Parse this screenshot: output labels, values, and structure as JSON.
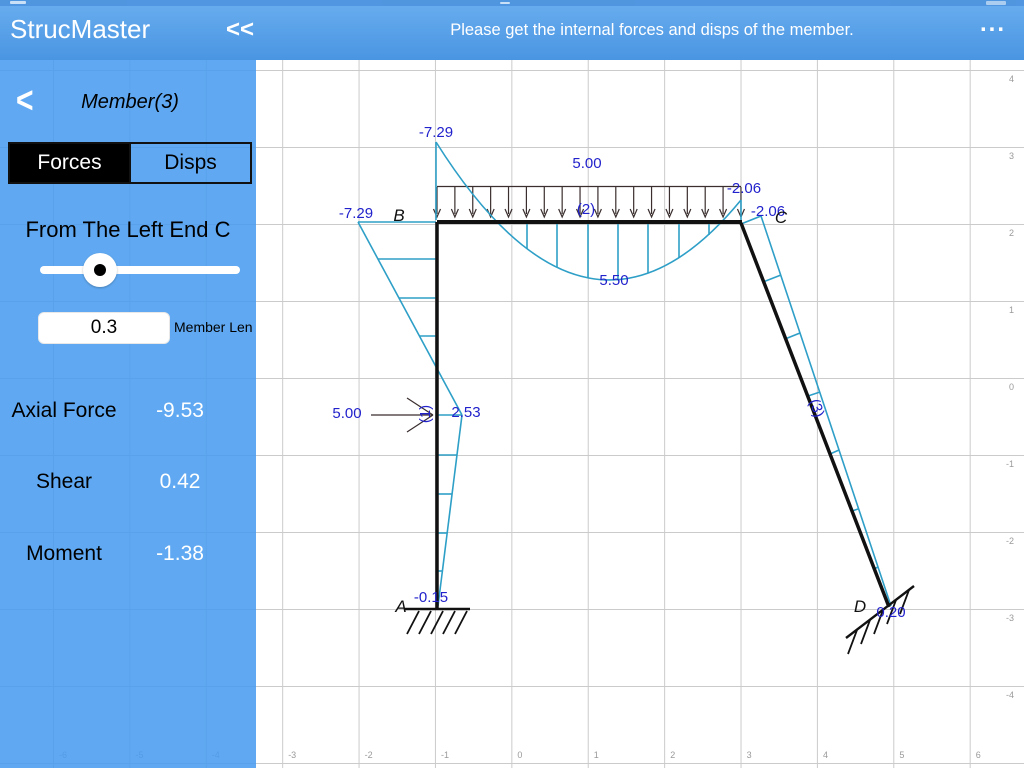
{
  "header": {
    "app_title": "StrucMaster",
    "collapse_label": "<<",
    "message": "Please get the internal forces and disps of the member.",
    "menu_label": "..."
  },
  "sidebar": {
    "back_label": "<",
    "title": "Member(3)",
    "tabs": [
      {
        "label": "Forces",
        "active": true
      },
      {
        "label": "Disps",
        "active": false
      }
    ],
    "slider_label": "From The Left End C",
    "position_value": "0.3",
    "position_field_label": "Member Len",
    "results": [
      {
        "label": "Axial Force",
        "value": "-9.53"
      },
      {
        "label": "Shear",
        "value": "0.42"
      },
      {
        "label": "Moment",
        "value": "-1.38"
      }
    ]
  },
  "diagram": {
    "node_a": "A",
    "node_b": "B",
    "node_c": "C",
    "node_d": "D",
    "member1_tag": "(1)",
    "member2_tag": "(2)",
    "member3_tag": "(3)",
    "moment_b_column": "-7.29",
    "moment_b_beam": "-7.29",
    "beam_load_value": "5.00",
    "moment_c_beam": "-2.06",
    "moment_c_column": "-2.06",
    "beam_mid_moment": "5.50",
    "column_load_value": "5.00",
    "column_mid_moment": "2.53",
    "moment_a": "-0.15",
    "moment_d": "0.20"
  },
  "axes": {
    "x_labels": [
      "-6",
      "-5",
      "-4",
      "-3",
      "-2",
      "-1",
      "0",
      "1",
      "2",
      "3",
      "4",
      "5",
      "6"
    ],
    "y_labels": [
      "4",
      "3",
      "2",
      "1",
      "0",
      "-1",
      "-2",
      "-3",
      "-4"
    ]
  },
  "colors": {
    "header_blue": "#55a2e8",
    "sidebar_blue": "#489cf0",
    "moment_cyan": "#2e9fc7",
    "label_blue": "#2222cc",
    "grid_gray": "#cbcbcb"
  }
}
